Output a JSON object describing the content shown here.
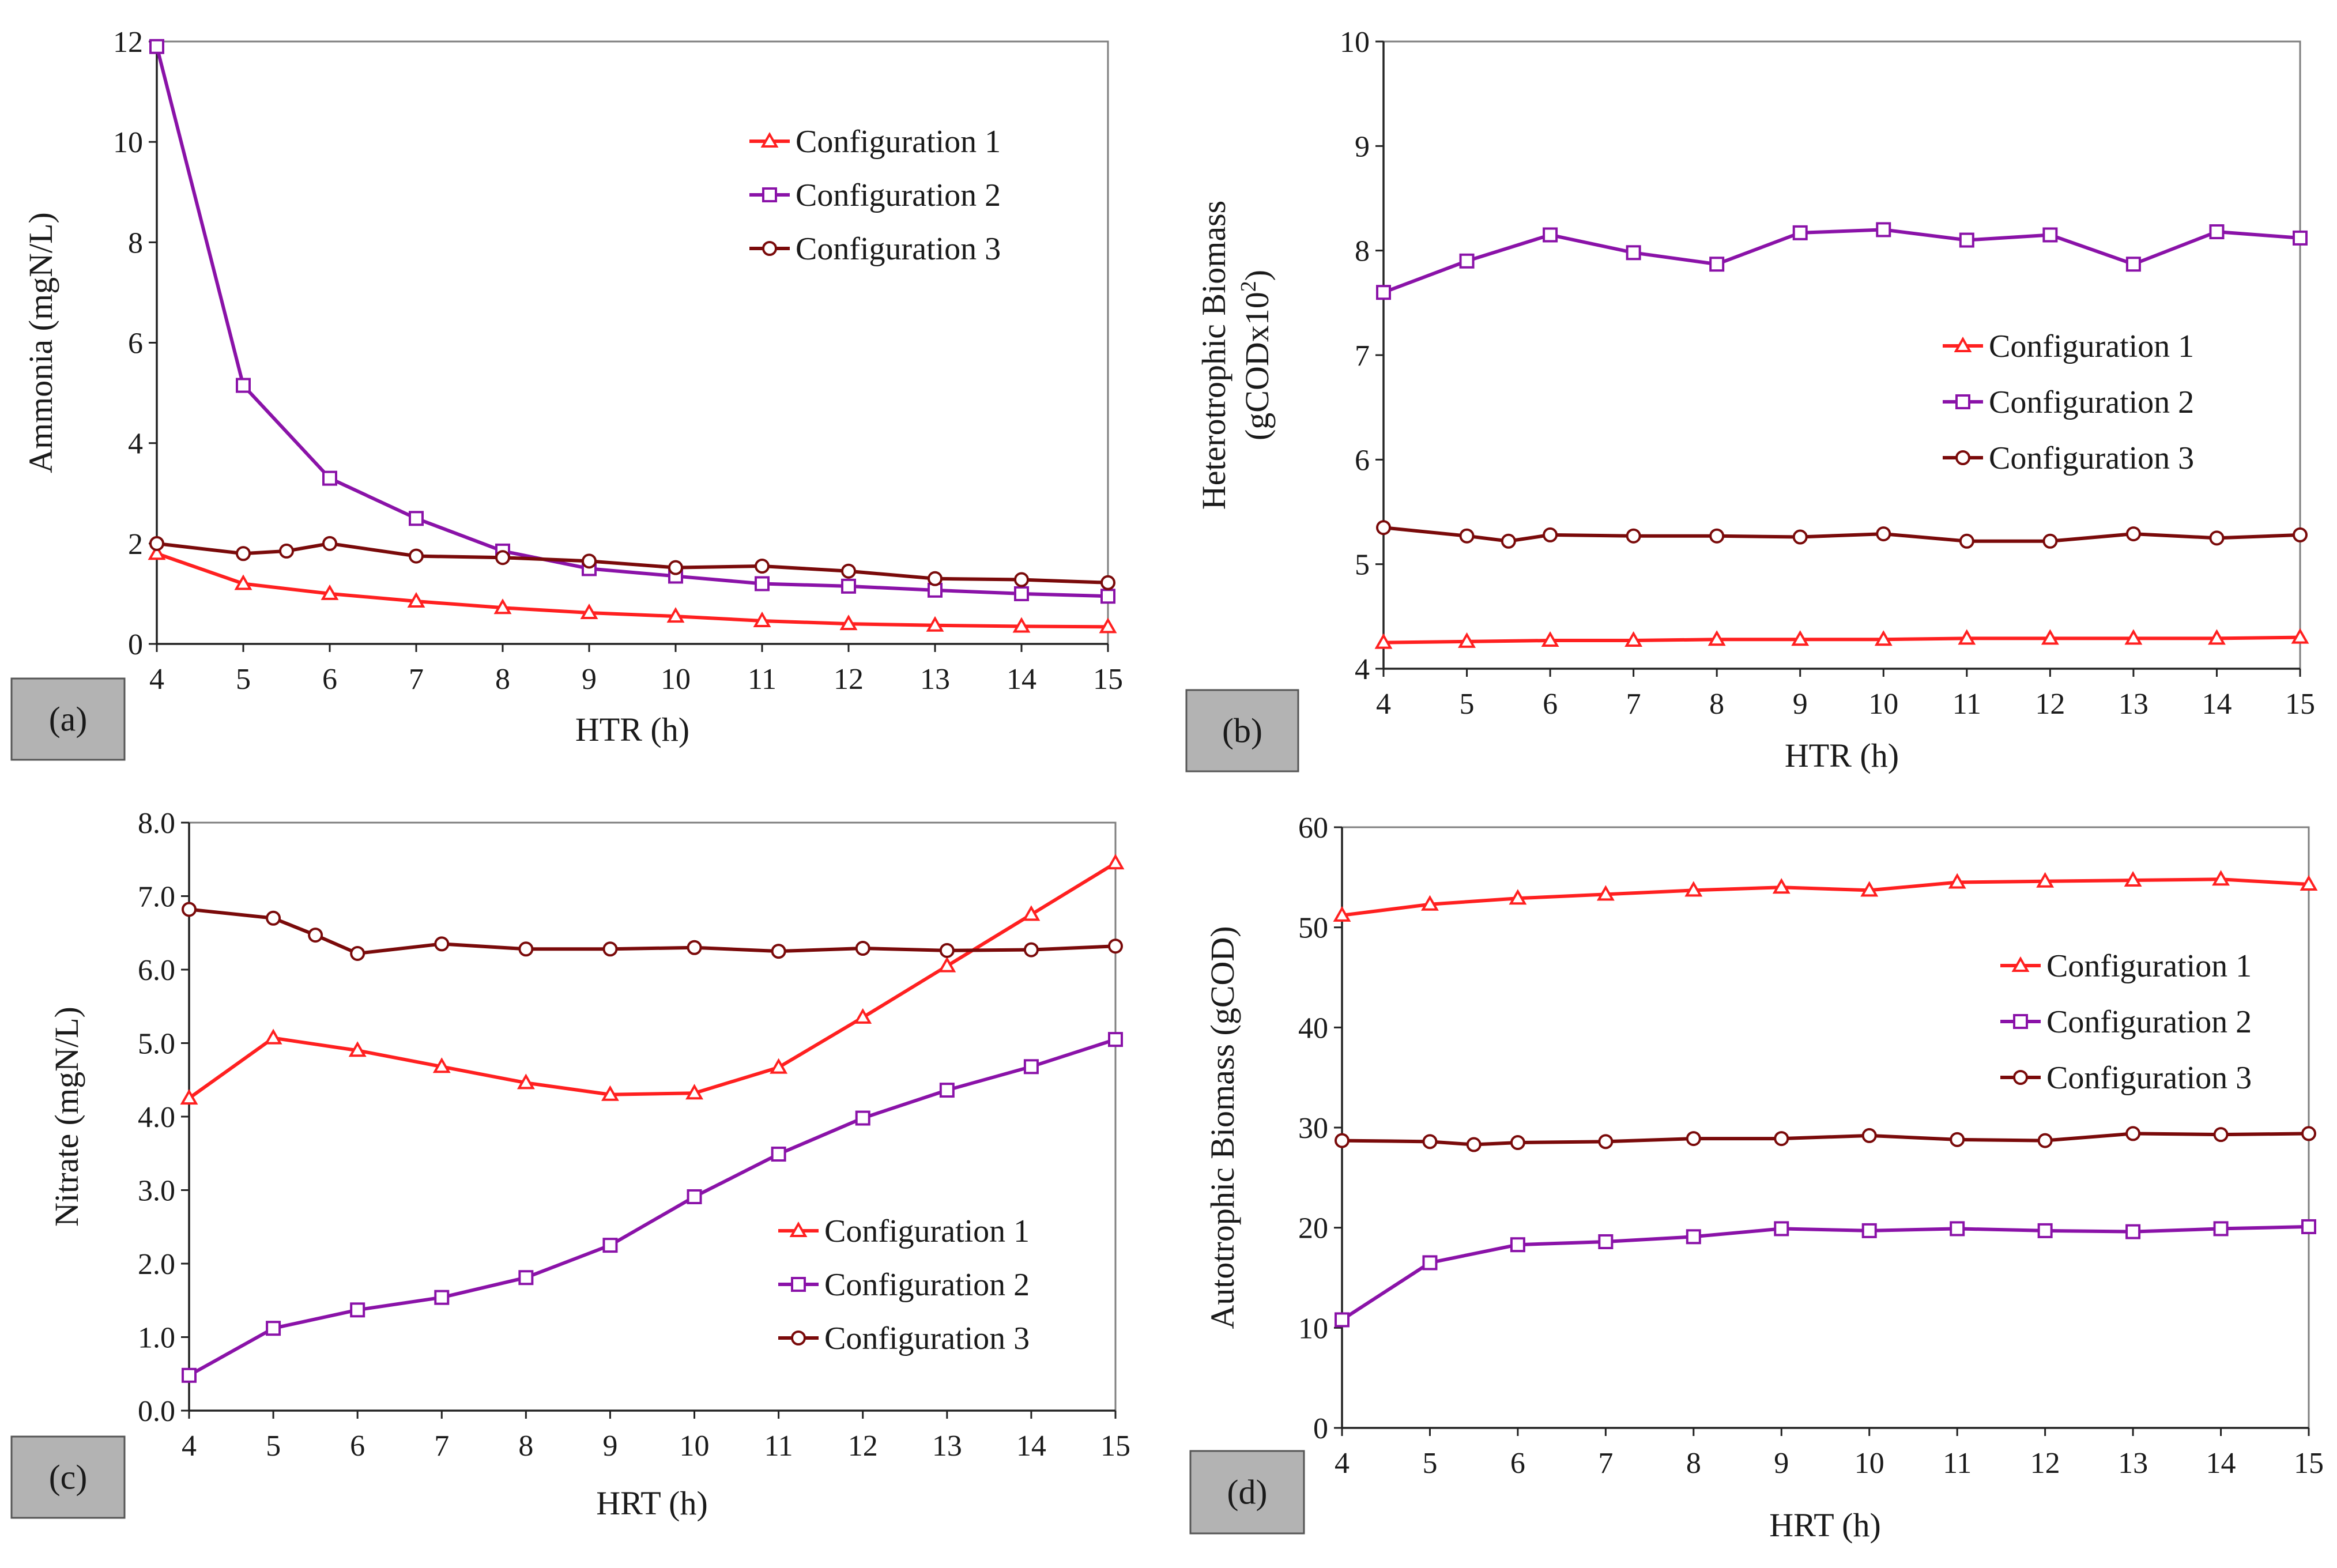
{
  "chart_data": [
    {
      "type": "line",
      "panel_label": "(a)",
      "xlabel": "HTR (h)",
      "ylabel": "Ammonia (mgN/L)",
      "ylim": [
        0,
        12
      ],
      "yticks": [
        "0",
        "2",
        "4",
        "6",
        "8",
        "10",
        "12"
      ],
      "xticks": [
        "4",
        "5",
        "6",
        "7",
        "8",
        "9",
        "10",
        "11",
        "12",
        "13",
        "14",
        "15"
      ],
      "xlim": [
        4,
        15
      ],
      "legend_position": "top-right",
      "series": [
        {
          "name": "Configuration 1",
          "color": "#ff2020",
          "marker": "triangle",
          "x": [
            4,
            5,
            6,
            7,
            8,
            9,
            10,
            11,
            12,
            13,
            14,
            15
          ],
          "y": [
            1.8,
            1.2,
            1.0,
            0.85,
            0.72,
            0.62,
            0.55,
            0.46,
            0.4,
            0.37,
            0.35,
            0.34
          ]
        },
        {
          "name": "Configuration 2",
          "color": "#8a12a8",
          "marker": "square",
          "x": [
            4,
            5,
            6,
            7,
            8,
            9,
            10,
            11,
            12,
            13,
            14,
            15
          ],
          "y": [
            11.9,
            5.15,
            3.3,
            2.5,
            1.85,
            1.5,
            1.35,
            1.2,
            1.15,
            1.07,
            1.0,
            0.95
          ]
        },
        {
          "name": "Configuration 3",
          "color": "#7a0a0a",
          "marker": "circle",
          "x": [
            4,
            5,
            5.5,
            6,
            7,
            8,
            9,
            10,
            11,
            12,
            13,
            14,
            15
          ],
          "y": [
            2.0,
            1.8,
            1.85,
            2.0,
            1.75,
            1.72,
            1.65,
            1.52,
            1.55,
            1.45,
            1.3,
            1.28,
            1.22
          ]
        }
      ]
    },
    {
      "type": "line",
      "panel_label": "(b)",
      "xlabel": "HTR (h)",
      "ylabel": "Heterotrophic Biomass",
      "ylabel_line2": "(gCODx10",
      "ylabel_sup": "2",
      "ylabel_end": ")",
      "ylim": [
        4,
        10
      ],
      "yticks": [
        "4",
        "5",
        "6",
        "7",
        "8",
        "9",
        "10"
      ],
      "xticks": [
        "4",
        "5",
        "6",
        "7",
        "8",
        "9",
        "10",
        "11",
        "12",
        "13",
        "14",
        "15"
      ],
      "xlim": [
        4,
        15
      ],
      "legend_position": "center-right",
      "series": [
        {
          "name": "Configuration 1",
          "color": "#ff2020",
          "marker": "triangle",
          "x": [
            4,
            5,
            6,
            7,
            8,
            9,
            10,
            11,
            12,
            13,
            14,
            15
          ],
          "y": [
            4.25,
            4.26,
            4.27,
            4.27,
            4.28,
            4.28,
            4.28,
            4.29,
            4.29,
            4.29,
            4.29,
            4.3
          ]
        },
        {
          "name": "Configuration 2",
          "color": "#8a12a8",
          "marker": "square",
          "x": [
            4,
            5,
            6,
            7,
            8,
            9,
            10,
            11,
            12,
            13,
            14,
            15
          ],
          "y": [
            7.6,
            7.9,
            8.15,
            7.98,
            7.87,
            8.17,
            8.2,
            8.1,
            8.15,
            7.87,
            8.18,
            8.12
          ]
        },
        {
          "name": "Configuration 3",
          "color": "#7a0a0a",
          "marker": "circle",
          "x": [
            4,
            5,
            5.5,
            6,
            7,
            8,
            9,
            10,
            11,
            12,
            13,
            14,
            15
          ],
          "y": [
            5.35,
            5.27,
            5.22,
            5.28,
            5.27,
            5.27,
            5.26,
            5.29,
            5.22,
            5.22,
            5.29,
            5.25,
            5.28
          ]
        }
      ]
    },
    {
      "type": "line",
      "panel_label": "(c)",
      "xlabel": "HRT (h)",
      "ylabel": "Nitrate (mgN/L)",
      "ylim": [
        0,
        8
      ],
      "yticks": [
        "0.0",
        "1.0",
        "2.0",
        "3.0",
        "4.0",
        "5.0",
        "6.0",
        "7.0",
        "8.0"
      ],
      "xticks": [
        "4",
        "5",
        "6",
        "7",
        "8",
        "9",
        "10",
        "11",
        "12",
        "13",
        "14",
        "15"
      ],
      "xlim": [
        4,
        15
      ],
      "legend_position": "bottom-right",
      "series": [
        {
          "name": "Configuration 1",
          "color": "#ff2020",
          "marker": "triangle",
          "x": [
            4,
            5,
            6,
            7,
            8,
            9,
            10,
            11,
            12,
            13,
            14,
            15
          ],
          "y": [
            4.25,
            5.07,
            4.9,
            4.68,
            4.46,
            4.3,
            4.32,
            4.67,
            5.35,
            6.05,
            6.75,
            7.45
          ]
        },
        {
          "name": "Configuration 2",
          "color": "#8a12a8",
          "marker": "square",
          "x": [
            4,
            5,
            6,
            7,
            8,
            9,
            10,
            11,
            12,
            13,
            14,
            15
          ],
          "y": [
            0.48,
            1.12,
            1.37,
            1.54,
            1.81,
            2.25,
            2.91,
            3.49,
            3.98,
            4.36,
            4.68,
            5.05
          ]
        },
        {
          "name": "Configuration 3",
          "color": "#7a0a0a",
          "marker": "circle",
          "x": [
            4,
            5,
            5.5,
            6,
            7,
            8,
            9,
            10,
            11,
            12,
            13,
            14,
            15
          ],
          "y": [
            6.82,
            6.7,
            6.47,
            6.22,
            6.35,
            6.28,
            6.28,
            6.3,
            6.25,
            6.29,
            6.26,
            6.27,
            6.32
          ]
        }
      ]
    },
    {
      "type": "line",
      "panel_label": "(d)",
      "xlabel": "HRT (h)",
      "ylabel": "Autotrophic Biomass (gCOD)",
      "ylim": [
        0,
        60
      ],
      "yticks": [
        "0",
        "10",
        "20",
        "30",
        "40",
        "50",
        "60"
      ],
      "xticks": [
        "4",
        "5",
        "6",
        "7",
        "8",
        "9",
        "10",
        "11",
        "12",
        "13",
        "14",
        "15"
      ],
      "xlim": [
        4,
        15
      ],
      "legend_position": "center-right",
      "series": [
        {
          "name": "Configuration 1",
          "color": "#ff2020",
          "marker": "triangle",
          "x": [
            4,
            5,
            6,
            7,
            8,
            9,
            10,
            11,
            12,
            13,
            14,
            15
          ],
          "y": [
            51.2,
            52.3,
            52.9,
            53.3,
            53.7,
            54.0,
            53.7,
            54.5,
            54.6,
            54.7,
            54.8,
            54.3
          ]
        },
        {
          "name": "Configuration 2",
          "color": "#8a12a8",
          "marker": "square",
          "x": [
            4,
            5,
            6,
            7,
            8,
            9,
            10,
            11,
            12,
            13,
            14,
            15
          ],
          "y": [
            10.8,
            16.5,
            18.3,
            18.6,
            19.1,
            19.9,
            19.7,
            19.9,
            19.7,
            19.6,
            19.9,
            20.1
          ]
        },
        {
          "name": "Configuration 3",
          "color": "#7a0a0a",
          "marker": "circle",
          "x": [
            4,
            5,
            5.5,
            6,
            7,
            8,
            9,
            10,
            11,
            12,
            13,
            14,
            15
          ],
          "y": [
            28.7,
            28.6,
            28.3,
            28.5,
            28.6,
            28.9,
            28.9,
            29.2,
            28.8,
            28.7,
            29.4,
            29.3,
            29.4
          ]
        }
      ]
    }
  ]
}
